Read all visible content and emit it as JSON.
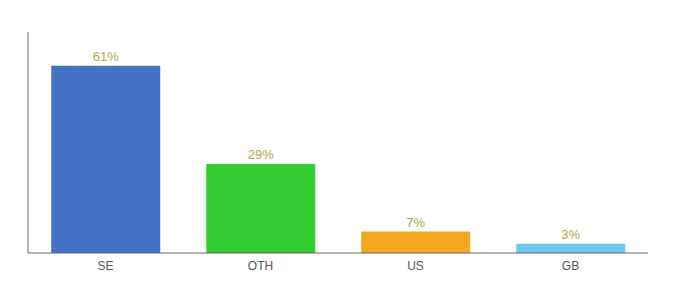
{
  "chart_data": {
    "type": "bar",
    "categories": [
      "SE",
      "OTH",
      "US",
      "GB"
    ],
    "values": [
      61,
      29,
      7,
      3
    ],
    "value_labels": [
      "61%",
      "29%",
      "7%",
      "3%"
    ],
    "colors": [
      "#4472c4",
      "#33cc33",
      "#f5a623",
      "#6ec6f0"
    ],
    "ylim": [
      0,
      72
    ],
    "data_labels": true,
    "tick_labels": "x",
    "grid": false
  }
}
